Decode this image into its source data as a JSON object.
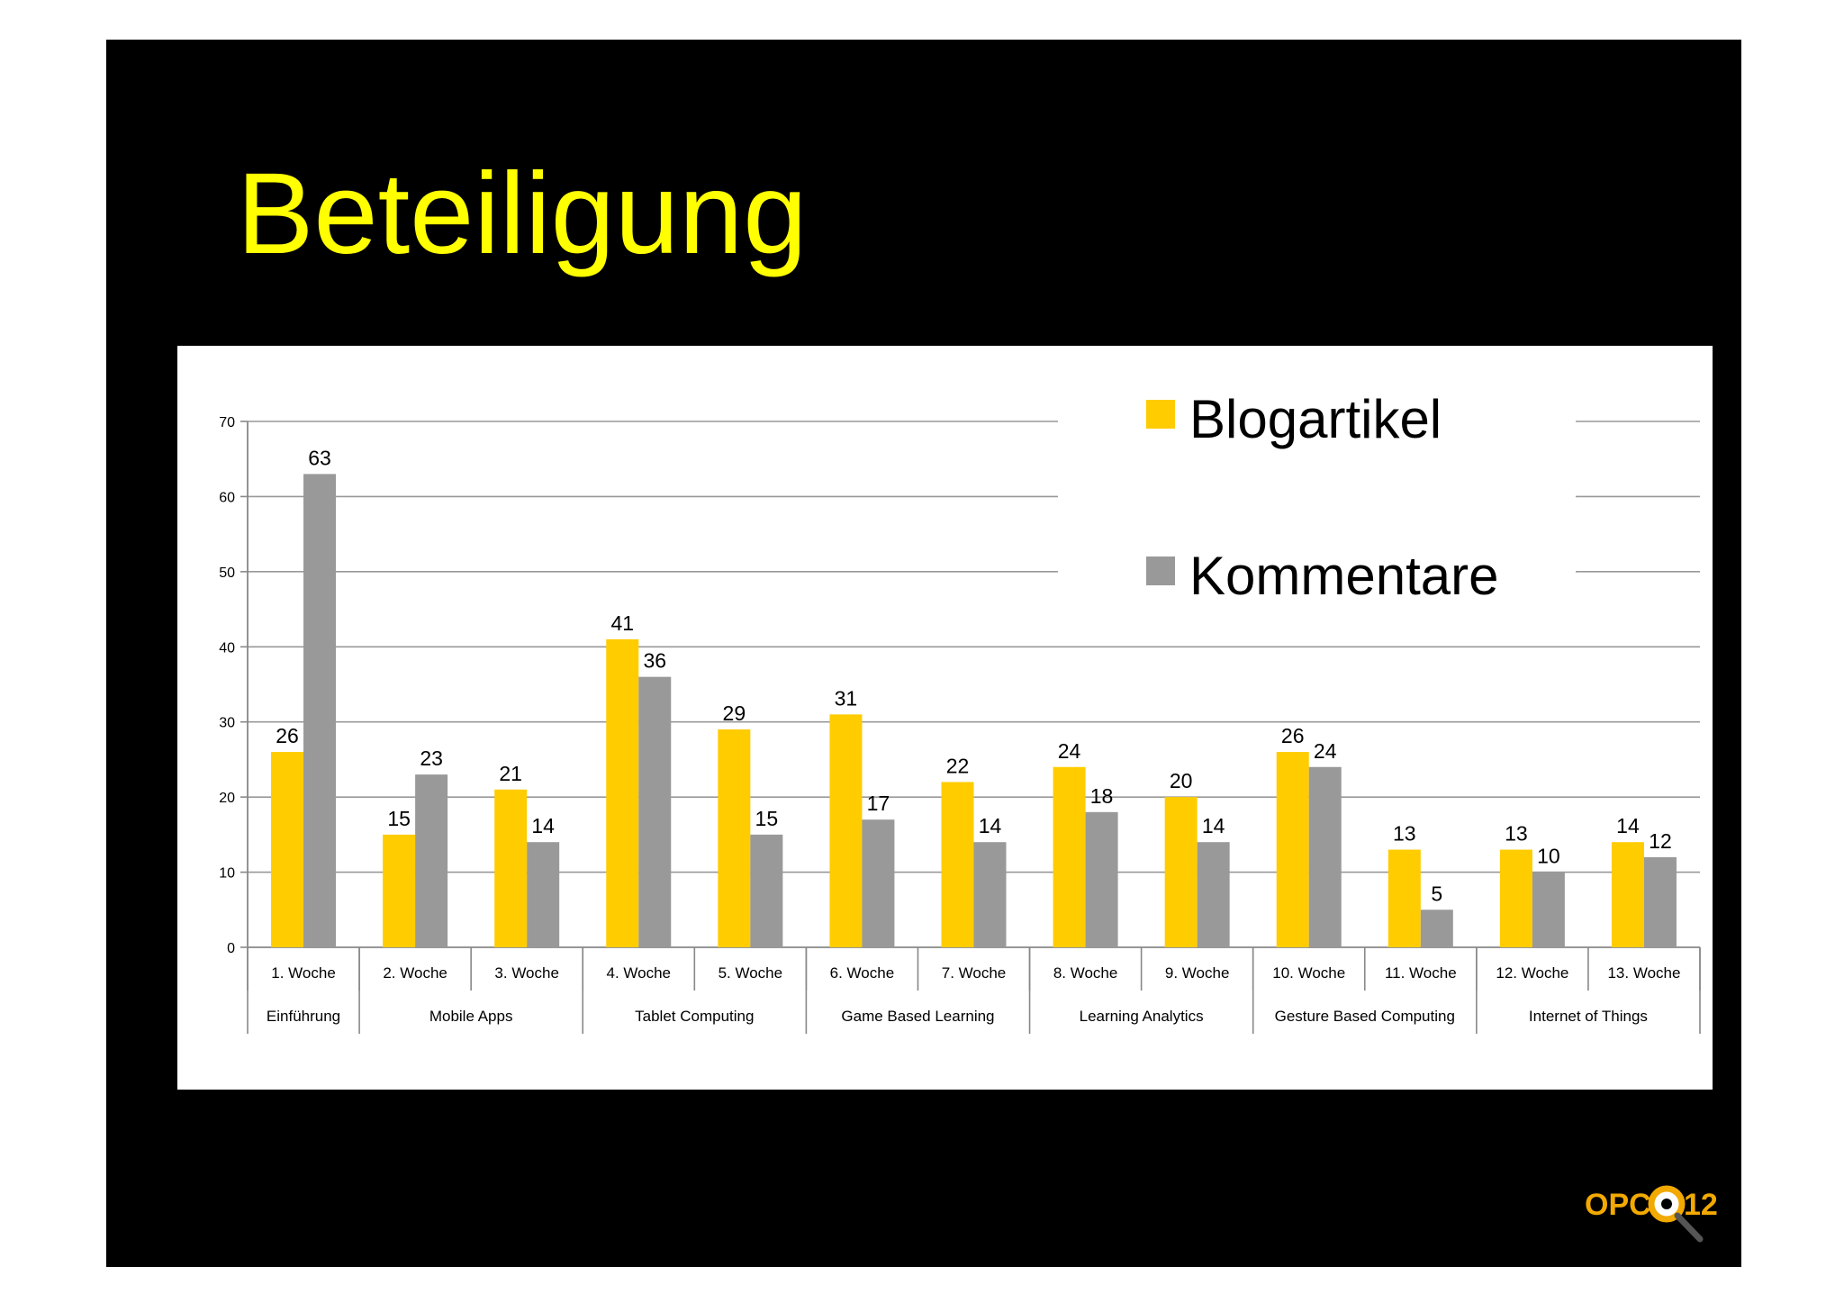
{
  "slide": {
    "title": "Beteiligung",
    "background": "#000000",
    "title_color": "#ffff00"
  },
  "logo": {
    "text_left": "OPC",
    "text_right": "12",
    "icon": "magnifier-icon",
    "color": "#f2a900"
  },
  "chart_data": {
    "type": "bar",
    "categories": [
      "1. Woche",
      "2. Woche",
      "3. Woche",
      "4. Woche",
      "5. Woche",
      "6. Woche",
      "7. Woche",
      "8. Woche",
      "9. Woche",
      "10. Woche",
      "11. Woche",
      "12. Woche",
      "13. Woche"
    ],
    "groups": [
      {
        "label": "Einführung",
        "span": 1
      },
      {
        "label": "Mobile Apps",
        "span": 2
      },
      {
        "label": "Tablet Computing",
        "span": 2
      },
      {
        "label": "Game Based Learning",
        "span": 2
      },
      {
        "label": "Learning Analytics",
        "span": 2
      },
      {
        "label": "Gesture Based Computing",
        "span": 2
      },
      {
        "label": "Internet of Things",
        "span": 2
      }
    ],
    "series": [
      {
        "name": "Blogartikel",
        "color": "#ffcc00",
        "values": [
          26,
          15,
          21,
          41,
          29,
          31,
          22,
          24,
          20,
          26,
          13,
          13,
          14
        ]
      },
      {
        "name": "Kommentare",
        "color": "#999999",
        "values": [
          63,
          23,
          14,
          36,
          15,
          17,
          14,
          18,
          14,
          24,
          5,
          10,
          12
        ]
      }
    ],
    "ylim": [
      0,
      70
    ],
    "yticks": [
      0,
      10,
      20,
      30,
      40,
      50,
      60,
      70
    ],
    "grid": true,
    "legend_position": "top-right",
    "title": "",
    "xlabel": "",
    "ylabel": ""
  }
}
